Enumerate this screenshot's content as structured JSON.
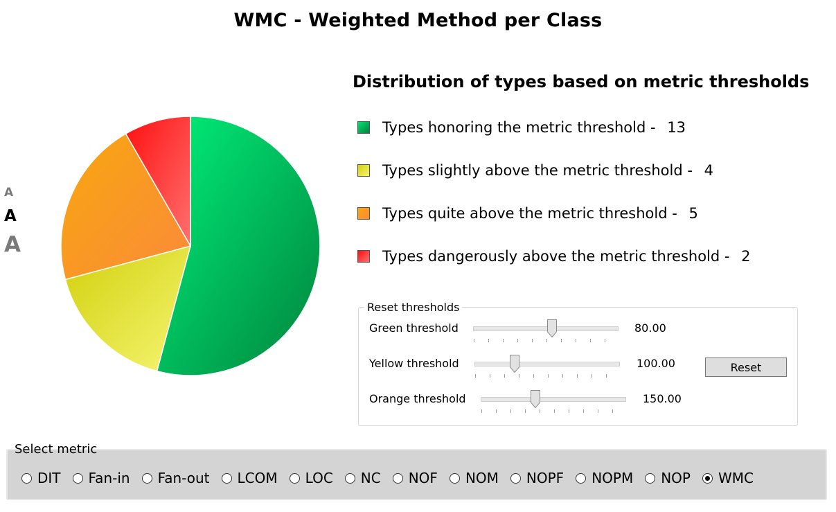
{
  "title": "WMC - Weighted Method per Class",
  "font_sizer": {
    "small": "A",
    "medium": "A",
    "large": "A"
  },
  "chart_data": {
    "type": "pie",
    "title": "Distribution of types based on metric thresholds",
    "slices": [
      {
        "name": "Types honoring the metric threshold",
        "value": 13,
        "color": "#00b050"
      },
      {
        "name": "Types slightly above the metric threshold",
        "value": 4,
        "color": "#e6e64a"
      },
      {
        "name": "Types quite above the metric threshold",
        "value": 5,
        "color": "#f7931e"
      },
      {
        "name": "Types dangerously above the metric threshold",
        "value": 2,
        "color": "#ff2b2b"
      }
    ],
    "legend_placement": "right"
  },
  "legend_separator": " - ",
  "thresholds": {
    "legend": "Reset thresholds",
    "rows": [
      {
        "label": "Green threshold",
        "value": "80.00",
        "slider_fraction": 0.55
      },
      {
        "label": "Yellow threshold",
        "value": "100.00",
        "slider_fraction": 0.28
      },
      {
        "label": "Orange threshold",
        "value": "150.00",
        "slider_fraction": 0.38
      }
    ],
    "reset_label": "Reset"
  },
  "metrics": {
    "legend": "Select metric",
    "options": [
      "DIT",
      "Fan-in",
      "Fan-out",
      "LCOM",
      "LOC",
      "NC",
      "NOF",
      "NOM",
      "NOPF",
      "NOPM",
      "NOP",
      "WMC"
    ],
    "selected": "WMC"
  }
}
